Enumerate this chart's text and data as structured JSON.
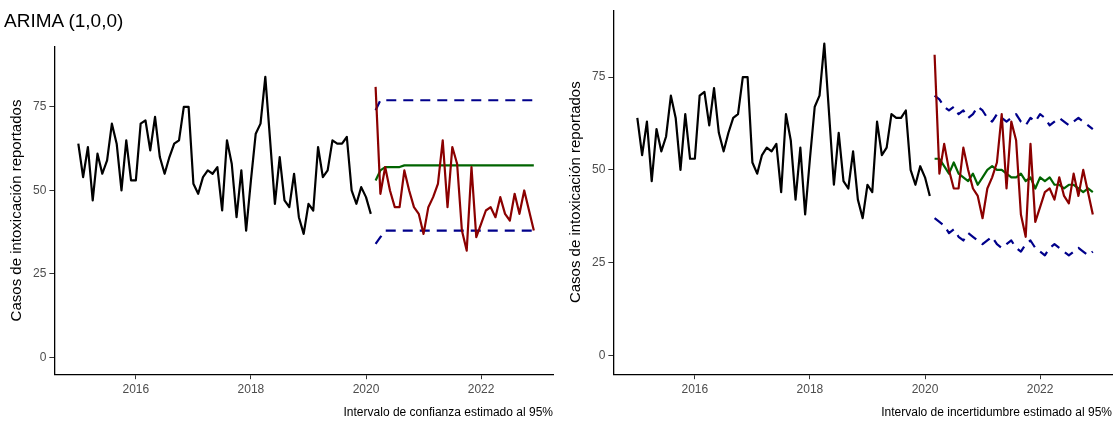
{
  "chart_data": [
    {
      "type": "line",
      "title": "ARIMA (1,0,0)",
      "ylabel": "Casos de intoxicación reportados",
      "annotations": [
        "Intervalo de confianza estimado al 95%"
      ],
      "xlim": [
        "2014-08",
        "2023-04"
      ],
      "xticks": [
        "2016",
        "2018",
        "2020",
        "2022"
      ],
      "ylim": [
        -5,
        93
      ],
      "yticks": [
        0,
        25,
        50,
        75
      ],
      "grid": false,
      "legend": false,
      "marker": "none",
      "series": [
        {
          "color": "#000000",
          "x": [
            "2015-01",
            "2015-02",
            "2015-03",
            "2015-04",
            "2015-05",
            "2015-06",
            "2015-07",
            "2015-08",
            "2015-09",
            "2015-10",
            "2015-11",
            "2015-12",
            "2016-01",
            "2016-02",
            "2016-03",
            "2016-04",
            "2016-05",
            "2016-06",
            "2016-07",
            "2016-08",
            "2016-09",
            "2016-10",
            "2016-11",
            "2016-12",
            "2017-01",
            "2017-02",
            "2017-03",
            "2017-04",
            "2017-05",
            "2017-06",
            "2017-07",
            "2017-08",
            "2017-09",
            "2017-10",
            "2017-11",
            "2017-12",
            "2018-01",
            "2018-02",
            "2018-03",
            "2018-04",
            "2018-05",
            "2018-06",
            "2018-07",
            "2018-08",
            "2018-09",
            "2018-10",
            "2018-11",
            "2018-12",
            "2019-01",
            "2019-02",
            "2019-03",
            "2019-04",
            "2019-05",
            "2019-06",
            "2019-07",
            "2019-08",
            "2019-09",
            "2019-10",
            "2019-11",
            "2019-12",
            "2020-01",
            "2020-02"
          ],
          "values": [
            64,
            54,
            63,
            47,
            61,
            55,
            59,
            70,
            64,
            50,
            65,
            53,
            53,
            70,
            71,
            62,
            72,
            60,
            55,
            60,
            64,
            65,
            75,
            75,
            52,
            49,
            54,
            56,
            55,
            57,
            44,
            65,
            58,
            42,
            56,
            38,
            53,
            67,
            70,
            84,
            65,
            46,
            60,
            47,
            45,
            55,
            42,
            37,
            46,
            44,
            63,
            54,
            56,
            65,
            64,
            64,
            66,
            50,
            46,
            51,
            48,
            43
          ]
        },
        {
          "color": "#8b0000",
          "x": [
            "2020-03",
            "2020-04",
            "2020-05",
            "2020-06",
            "2020-07",
            "2020-08",
            "2020-09",
            "2020-10",
            "2020-11",
            "2020-12",
            "2021-01",
            "2021-02",
            "2021-03",
            "2021-04",
            "2021-05",
            "2021-06",
            "2021-07",
            "2021-08",
            "2021-09",
            "2021-10",
            "2021-11",
            "2021-12",
            "2022-01",
            "2022-02",
            "2022-03",
            "2022-04",
            "2022-05",
            "2022-06",
            "2022-07",
            "2022-08",
            "2022-09",
            "2022-10",
            "2022-11",
            "2022-12"
          ],
          "values": [
            81,
            49,
            57,
            50,
            45,
            45,
            56,
            50,
            45,
            43,
            37,
            45,
            48,
            52,
            65,
            45,
            63,
            58,
            38,
            32,
            57,
            36,
            40,
            44,
            45,
            42,
            48,
            43,
            41,
            49,
            43,
            50,
            44,
            38
          ]
        },
        {
          "color": "#006400",
          "x": [
            "2020-03",
            "2020-04",
            "2020-05",
            "2020-06",
            "2020-07",
            "2020-08",
            "2020-09",
            "2020-10",
            "2020-11",
            "2020-12",
            "2021-01",
            "2021-02",
            "2021-03",
            "2021-04",
            "2021-05",
            "2021-06",
            "2021-07",
            "2021-08",
            "2021-09",
            "2021-10",
            "2021-11",
            "2021-12",
            "2022-01",
            "2022-02",
            "2022-03",
            "2022-04",
            "2022-05",
            "2022-06",
            "2022-07",
            "2022-08",
            "2022-09",
            "2022-10",
            "2022-11",
            "2022-12"
          ],
          "values": [
            53,
            56,
            57,
            57,
            57,
            57,
            57.5,
            57.5,
            57.5,
            57.5,
            57.5,
            57.5,
            57.5,
            57.5,
            57.5,
            57.5,
            57.5,
            57.5,
            57.5,
            57.5,
            57.5,
            57.5,
            57.5,
            57.5,
            57.5,
            57.5,
            57.5,
            57.5,
            57.5,
            57.5,
            57.5,
            57.5,
            57.5,
            57.5
          ]
        },
        {
          "color": "#00008b",
          "line_style": "dashed",
          "x": [
            "2020-03",
            "2020-04",
            "2020-05",
            "2020-06",
            "2020-07",
            "2020-08",
            "2020-09",
            "2020-10",
            "2020-11",
            "2020-12",
            "2021-01",
            "2021-02",
            "2021-03",
            "2021-04",
            "2021-05",
            "2021-06",
            "2021-07",
            "2021-08",
            "2021-09",
            "2021-10",
            "2021-11",
            "2021-12",
            "2022-01",
            "2022-02",
            "2022-03",
            "2022-04",
            "2022-05",
            "2022-06",
            "2022-07",
            "2022-08",
            "2022-09",
            "2022-10",
            "2022-11",
            "2022-12"
          ],
          "values": [
            74,
            77,
            77,
            77,
            77,
            77,
            77,
            77,
            77,
            77,
            77,
            77,
            77,
            77,
            77,
            77,
            77,
            77,
            77,
            77,
            77,
            77,
            77,
            77,
            77,
            77,
            77,
            77,
            77,
            77,
            77,
            77,
            77,
            77
          ]
        },
        {
          "color": "#00008b",
          "line_style": "dashed",
          "x": [
            "2020-03",
            "2020-04",
            "2020-05",
            "2020-06",
            "2020-07",
            "2020-08",
            "2020-09",
            "2020-10",
            "2020-11",
            "2020-12",
            "2021-01",
            "2021-02",
            "2021-03",
            "2021-04",
            "2021-05",
            "2021-06",
            "2021-07",
            "2021-08",
            "2021-09",
            "2021-10",
            "2021-11",
            "2021-12",
            "2022-01",
            "2022-02",
            "2022-03",
            "2022-04",
            "2022-05",
            "2022-06",
            "2022-07",
            "2022-08",
            "2022-09",
            "2022-10",
            "2022-11",
            "2022-12"
          ],
          "values": [
            34,
            36,
            38,
            38,
            38,
            38,
            38,
            38,
            38,
            38,
            38,
            38,
            38,
            38,
            38,
            38,
            38,
            38,
            38,
            38,
            38,
            38,
            38,
            38,
            38,
            38,
            38,
            38,
            38,
            38,
            38,
            38,
            38,
            38
          ]
        }
      ]
    },
    {
      "type": "line",
      "ylabel": "Casos de intoxicación reportados",
      "annotations": [
        "Intervalo de incertidumbre estimado al 95%"
      ],
      "xlim": [
        "2014-08",
        "2023-04"
      ],
      "xticks": [
        "2016",
        "2018",
        "2020",
        "2022"
      ],
      "ylim": [
        -5,
        93
      ],
      "yticks": [
        0,
        25,
        50,
        75
      ],
      "grid": false,
      "legend": false,
      "marker": "none",
      "series": [
        {
          "color": "#000000",
          "x": [
            "2015-01",
            "2015-02",
            "2015-03",
            "2015-04",
            "2015-05",
            "2015-06",
            "2015-07",
            "2015-08",
            "2015-09",
            "2015-10",
            "2015-11",
            "2015-12",
            "2016-01",
            "2016-02",
            "2016-03",
            "2016-04",
            "2016-05",
            "2016-06",
            "2016-07",
            "2016-08",
            "2016-09",
            "2016-10",
            "2016-11",
            "2016-12",
            "2017-01",
            "2017-02",
            "2017-03",
            "2017-04",
            "2017-05",
            "2017-06",
            "2017-07",
            "2017-08",
            "2017-09",
            "2017-10",
            "2017-11",
            "2017-12",
            "2018-01",
            "2018-02",
            "2018-03",
            "2018-04",
            "2018-05",
            "2018-06",
            "2018-07",
            "2018-08",
            "2018-09",
            "2018-10",
            "2018-11",
            "2018-12",
            "2019-01",
            "2019-02",
            "2019-03",
            "2019-04",
            "2019-05",
            "2019-06",
            "2019-07",
            "2019-08",
            "2019-09",
            "2019-10",
            "2019-11",
            "2019-12",
            "2020-01",
            "2020-02"
          ],
          "values": [
            64,
            54,
            63,
            47,
            61,
            55,
            59,
            70,
            64,
            50,
            65,
            53,
            53,
            70,
            71,
            62,
            72,
            60,
            55,
            60,
            64,
            65,
            75,
            75,
            52,
            49,
            54,
            56,
            55,
            57,
            44,
            65,
            58,
            42,
            56,
            38,
            53,
            67,
            70,
            84,
            65,
            46,
            60,
            47,
            45,
            55,
            42,
            37,
            46,
            44,
            63,
            54,
            56,
            65,
            64,
            64,
            66,
            50,
            46,
            51,
            48,
            43
          ]
        },
        {
          "color": "#8b0000",
          "x": [
            "2020-03",
            "2020-04",
            "2020-05",
            "2020-06",
            "2020-07",
            "2020-08",
            "2020-09",
            "2020-10",
            "2020-11",
            "2020-12",
            "2021-01",
            "2021-02",
            "2021-03",
            "2021-04",
            "2021-05",
            "2021-06",
            "2021-07",
            "2021-08",
            "2021-09",
            "2021-10",
            "2021-11",
            "2021-12",
            "2022-01",
            "2022-02",
            "2022-03",
            "2022-04",
            "2022-05",
            "2022-06",
            "2022-07",
            "2022-08",
            "2022-09",
            "2022-10",
            "2022-11",
            "2022-12"
          ],
          "values": [
            81,
            49,
            57,
            50,
            45,
            45,
            56,
            50,
            45,
            43,
            37,
            45,
            48,
            52,
            65,
            45,
            63,
            58,
            38,
            32,
            57,
            36,
            40,
            44,
            45,
            42,
            48,
            43,
            41,
            49,
            43,
            50,
            44,
            38
          ]
        },
        {
          "color": "#006400",
          "x": [
            "2020-03",
            "2020-04",
            "2020-05",
            "2020-06",
            "2020-07",
            "2020-08",
            "2020-09",
            "2020-10",
            "2020-11",
            "2020-12",
            "2021-01",
            "2021-02",
            "2021-03",
            "2021-04",
            "2021-05",
            "2021-06",
            "2021-07",
            "2021-08",
            "2021-09",
            "2021-10",
            "2021-11",
            "2021-12",
            "2022-01",
            "2022-02",
            "2022-03",
            "2022-04",
            "2022-05",
            "2022-06",
            "2022-07",
            "2022-08",
            "2022-09",
            "2022-10",
            "2022-11",
            "2022-12"
          ],
          "values": [
            53,
            53,
            51,
            49,
            52,
            49,
            48,
            47,
            49,
            46,
            48,
            50,
            51,
            50,
            50,
            49,
            48,
            48,
            49,
            47,
            48,
            45,
            48,
            47,
            48,
            46,
            46,
            45,
            46,
            46,
            45,
            44,
            45,
            44
          ]
        },
        {
          "color": "#00008b",
          "line_style": "dashed",
          "x": [
            "2020-03",
            "2020-04",
            "2020-05",
            "2020-06",
            "2020-07",
            "2020-08",
            "2020-09",
            "2020-10",
            "2020-11",
            "2020-12",
            "2021-01",
            "2021-02",
            "2021-03",
            "2021-04",
            "2021-05",
            "2021-06",
            "2021-07",
            "2021-08",
            "2021-09",
            "2021-10",
            "2021-11",
            "2021-12",
            "2022-01",
            "2022-02",
            "2022-03",
            "2022-04",
            "2022-05",
            "2022-06",
            "2022-07",
            "2022-08",
            "2022-09",
            "2022-10",
            "2022-11",
            "2022-12"
          ],
          "values": [
            70,
            69,
            67,
            66,
            67,
            65,
            66,
            64,
            65,
            67,
            66,
            64,
            63,
            65,
            64,
            63,
            64,
            65,
            63,
            62,
            64,
            63,
            65,
            64,
            62,
            63,
            64,
            63,
            62,
            63,
            64,
            63,
            62,
            61
          ]
        },
        {
          "color": "#00008b",
          "line_style": "dashed",
          "x": [
            "2020-03",
            "2020-04",
            "2020-05",
            "2020-06",
            "2020-07",
            "2020-08",
            "2020-09",
            "2020-10",
            "2020-11",
            "2020-12",
            "2021-01",
            "2021-02",
            "2021-03",
            "2021-04",
            "2021-05",
            "2021-06",
            "2021-07",
            "2021-08",
            "2021-09",
            "2021-10",
            "2021-11",
            "2021-12",
            "2022-01",
            "2022-02",
            "2022-03",
            "2022-04",
            "2022-05",
            "2022-06",
            "2022-07",
            "2022-08",
            "2022-09",
            "2022-10",
            "2022-11",
            "2022-12"
          ],
          "values": [
            37,
            36,
            35,
            33,
            34,
            32,
            31,
            33,
            32,
            31,
            30,
            31,
            32,
            30,
            29,
            30,
            31,
            29,
            28,
            30,
            31,
            29,
            28,
            27,
            29,
            30,
            29,
            28,
            27,
            28,
            29,
            28,
            27,
            28
          ]
        }
      ]
    }
  ]
}
